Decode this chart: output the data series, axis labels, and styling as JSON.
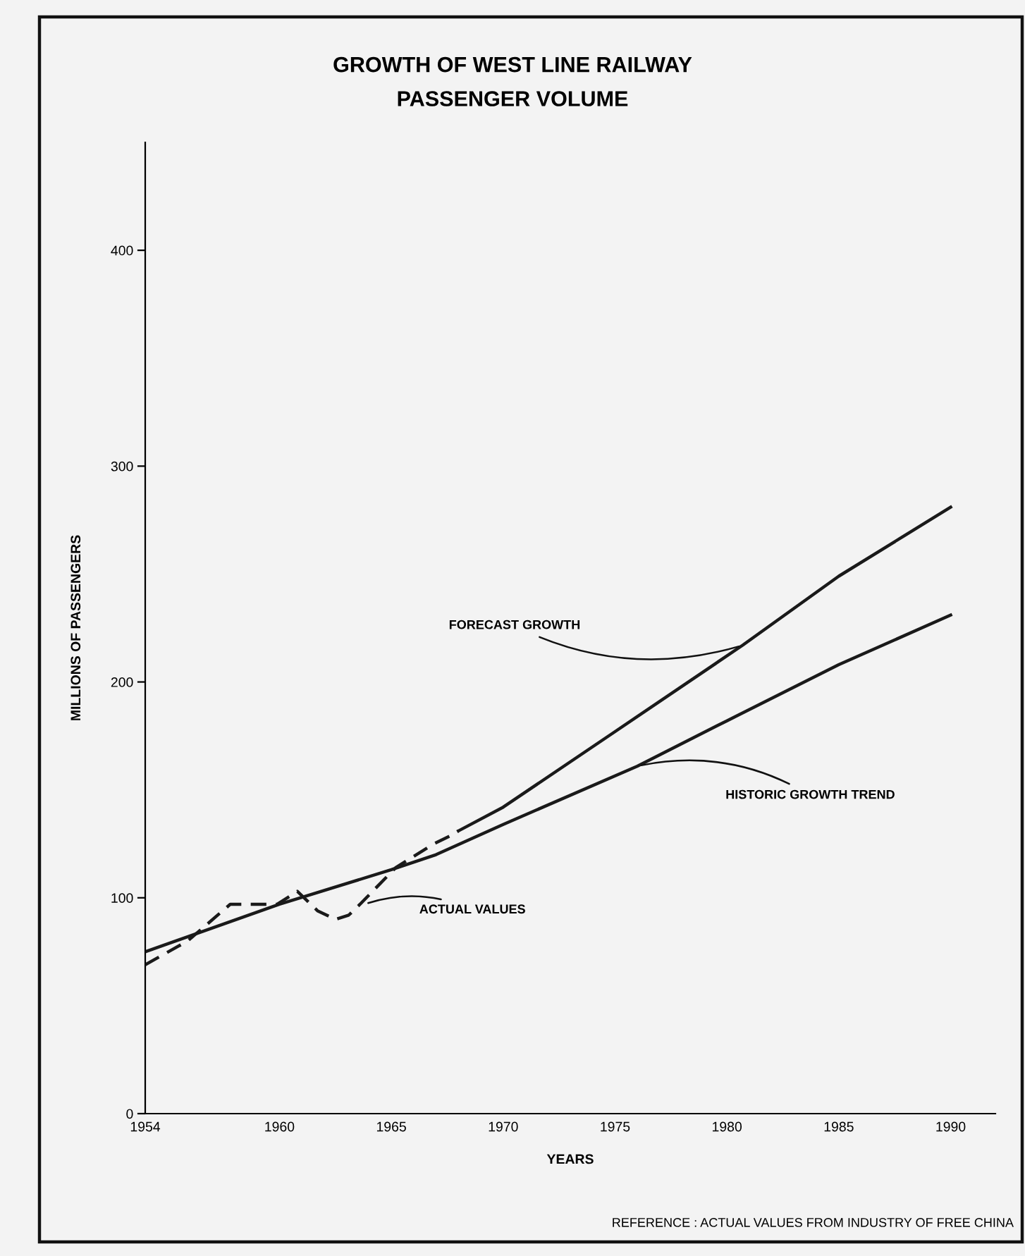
{
  "chart_data": {
    "type": "line",
    "title": "GROWTH OF WEST LINE RAILWAY\nPASSENGER VOLUME",
    "xlabel": "YEARS",
    "ylabel": "MILLIONS OF PASSENGERS",
    "series": [
      {
        "color": "#1a1a1a",
        "line_style": "solid",
        "x": [
          1954,
          1960,
          1965,
          1967,
          1970,
          1976,
          1980,
          1985,
          1990
        ],
        "values": [
          75,
          97,
          113,
          120,
          134,
          161,
          182,
          208,
          231
        ]
      },
      {
        "color": "#1a1a1a",
        "line_style": "solid",
        "x": [
          1968,
          1970,
          1975,
          1980.7,
          1985,
          1990
        ],
        "values": [
          131,
          142,
          177,
          217,
          249,
          281
        ]
      },
      {
        "color": "#1a1a1a",
        "line_style": "dashed",
        "x": [
          1954,
          1955.9,
          1957.8,
          1959.9,
          1960.8,
          1961.7,
          1962.5,
          1963.1,
          1963.6,
          1965.2,
          1966.9,
          1967.7,
          1968
        ],
        "values": [
          69,
          80,
          97,
          97,
          103,
          94,
          90,
          92,
          97,
          114,
          125,
          129,
          131
        ]
      }
    ],
    "xlim": [
      1954,
      1992
    ],
    "xticks": [
      1954,
      1960,
      1965,
      1970,
      1975,
      1980,
      1985,
      1990
    ],
    "ylim": [
      0,
      450
    ],
    "yticks": [
      0,
      100,
      200,
      300,
      400
    ],
    "grid": false,
    "legend": false,
    "marker": "none",
    "annotations": [
      {
        "text": "FORECAST GROWTH",
        "x": 1980.7,
        "y": 217
      },
      {
        "text": "HISTORIC GROWTH TREND",
        "x": 1976,
        "y": 161
      },
      {
        "text": "ACTUAL VALUES",
        "x": 1963.8,
        "y": 97
      },
      "REFERENCE : ACTUAL VALUES FROM INDUSTRY OF FREE CHINA"
    ]
  }
}
